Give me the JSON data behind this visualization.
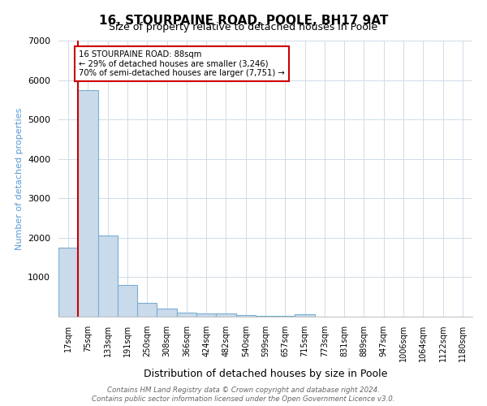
{
  "title": "16, STOURPAINE ROAD, POOLE, BH17 9AT",
  "subtitle": "Size of property relative to detached houses in Poole",
  "xlabel": "Distribution of detached houses by size in Poole",
  "ylabel": "Number of detached properties",
  "bar_labels": [
    "17sqm",
    "75sqm",
    "133sqm",
    "191sqm",
    "250sqm",
    "308sqm",
    "366sqm",
    "424sqm",
    "482sqm",
    "540sqm",
    "599sqm",
    "657sqm",
    "715sqm",
    "773sqm",
    "831sqm",
    "889sqm",
    "947sqm",
    "1006sqm",
    "1064sqm",
    "1122sqm",
    "1180sqm"
  ],
  "bar_values": [
    1750,
    5750,
    2050,
    800,
    340,
    200,
    110,
    80,
    75,
    50,
    30,
    20,
    70,
    0,
    0,
    0,
    0,
    0,
    0,
    0,
    0
  ],
  "bar_color": "#c9daea",
  "bar_edge_color": "#7aafd4",
  "property_line_color": "#cc0000",
  "annotation_text": "16 STOURPAINE ROAD: 88sqm\n← 29% of detached houses are smaller (3,246)\n70% of semi-detached houses are larger (7,751) →",
  "annotation_box_color": "#cc0000",
  "ylim": [
    0,
    7000
  ],
  "yticks": [
    0,
    1000,
    2000,
    3000,
    4000,
    5000,
    6000,
    7000
  ],
  "footer_line1": "Contains HM Land Registry data © Crown copyright and database right 2024.",
  "footer_line2": "Contains public sector information licensed under the Open Government Licence v3.0.",
  "bg_color": "#ffffff",
  "plot_bg_color": "#ffffff",
  "grid_color": "#d0dce8"
}
